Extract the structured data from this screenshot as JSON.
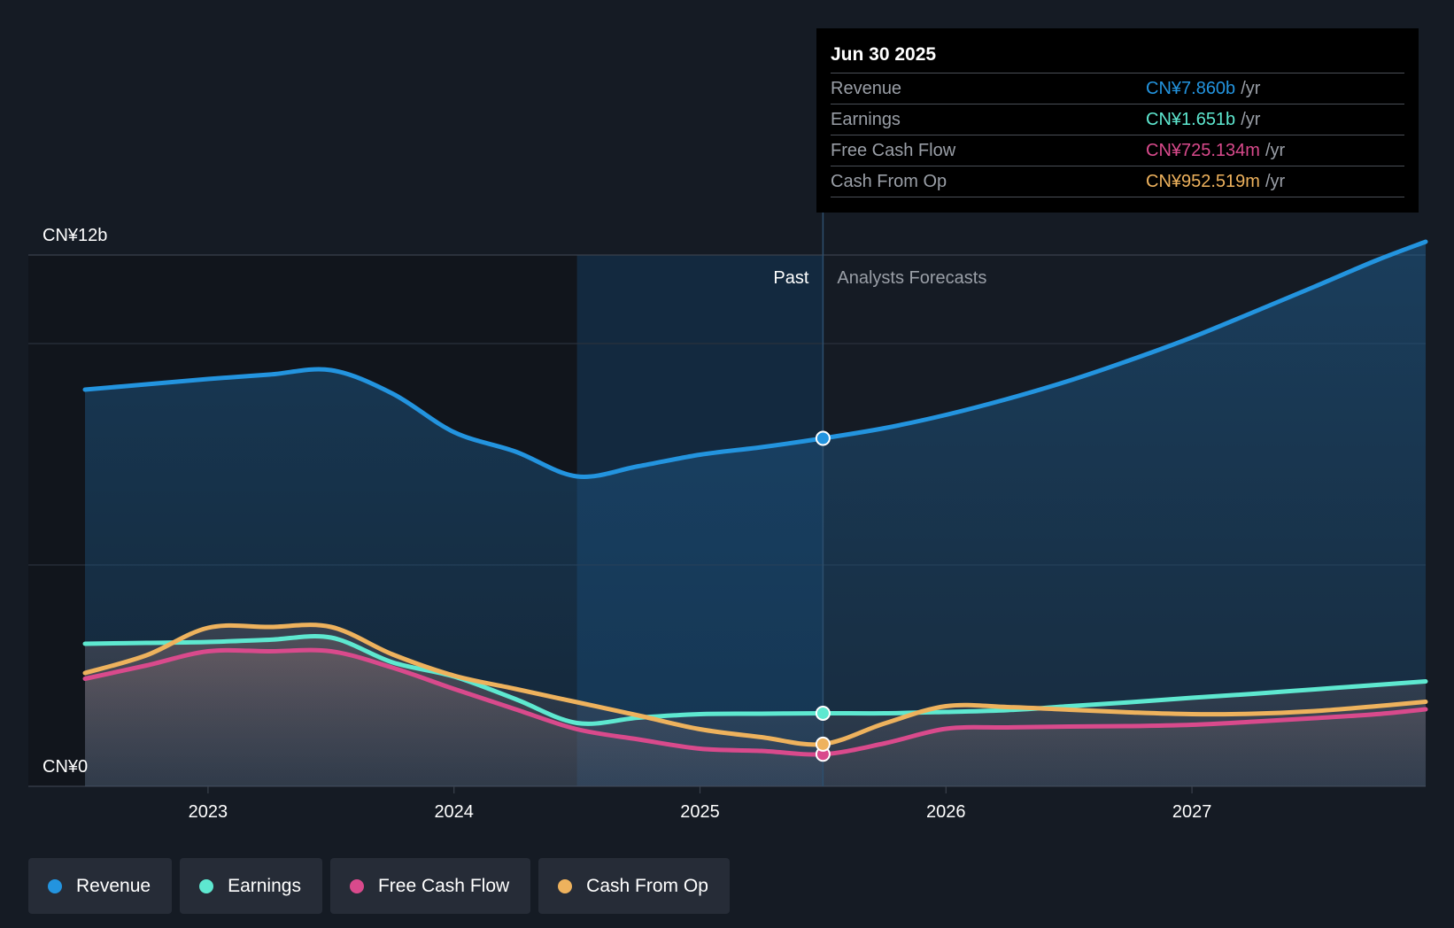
{
  "chart_data": {
    "type": "area",
    "y_unit_label": "CN¥",
    "ylim": [
      0,
      12
    ],
    "y_tick_labels": {
      "top": "CN¥12b",
      "bottom": "CN¥0"
    },
    "x_range": [
      2022.5,
      2027.95
    ],
    "x_ticks": [
      2023,
      2024,
      2025,
      2026,
      2027
    ],
    "x_tick_labels": [
      "2023",
      "2024",
      "2025",
      "2026",
      "2027"
    ],
    "past_label": "Past",
    "forecast_label": "Analysts Forecasts",
    "divider_x": 2025.5,
    "highlight_start_x": 2024.5,
    "series": [
      {
        "name": "Revenue",
        "color": "#2394df",
        "points": [
          [
            2022.5,
            8.96
          ],
          [
            2022.75,
            9.08
          ],
          [
            2023.0,
            9.2
          ],
          [
            2023.25,
            9.3
          ],
          [
            2023.5,
            9.4
          ],
          [
            2023.75,
            8.87
          ],
          [
            2024.0,
            8.0
          ],
          [
            2024.25,
            7.56
          ],
          [
            2024.5,
            7.0
          ],
          [
            2024.75,
            7.23
          ],
          [
            2025.0,
            7.49
          ],
          [
            2025.25,
            7.66
          ],
          [
            2025.5,
            7.86
          ],
          [
            2025.75,
            8.09
          ],
          [
            2026.0,
            8.39
          ],
          [
            2026.25,
            8.75
          ],
          [
            2026.5,
            9.16
          ],
          [
            2026.75,
            9.63
          ],
          [
            2027.0,
            10.14
          ],
          [
            2027.25,
            10.71
          ],
          [
            2027.5,
            11.29
          ],
          [
            2027.75,
            11.88
          ],
          [
            2027.95,
            12.3
          ]
        ]
      },
      {
        "name": "Earnings",
        "color": "#5ee8d0",
        "points": [
          [
            2022.5,
            3.22
          ],
          [
            2022.75,
            3.24
          ],
          [
            2023.0,
            3.26
          ],
          [
            2023.25,
            3.31
          ],
          [
            2023.5,
            3.36
          ],
          [
            2023.75,
            2.8
          ],
          [
            2024.0,
            2.48
          ],
          [
            2024.25,
            1.97
          ],
          [
            2024.5,
            1.43
          ],
          [
            2024.75,
            1.55
          ],
          [
            2025.0,
            1.63
          ],
          [
            2025.25,
            1.64
          ],
          [
            2025.5,
            1.651
          ],
          [
            2025.75,
            1.65
          ],
          [
            2026.0,
            1.68
          ],
          [
            2026.25,
            1.72
          ],
          [
            2026.5,
            1.81
          ],
          [
            2026.75,
            1.9
          ],
          [
            2027.0,
            2.0
          ],
          [
            2027.25,
            2.09
          ],
          [
            2027.5,
            2.19
          ],
          [
            2027.75,
            2.29
          ],
          [
            2027.95,
            2.37
          ]
        ]
      },
      {
        "name": "Free Cash Flow",
        "color": "#d94a8c",
        "points": [
          [
            2022.5,
            2.43
          ],
          [
            2022.75,
            2.73
          ],
          [
            2023.0,
            3.05
          ],
          [
            2023.25,
            3.05
          ],
          [
            2023.5,
            3.05
          ],
          [
            2023.75,
            2.68
          ],
          [
            2024.0,
            2.2
          ],
          [
            2024.25,
            1.74
          ],
          [
            2024.5,
            1.29
          ],
          [
            2024.75,
            1.06
          ],
          [
            2025.0,
            0.85
          ],
          [
            2025.25,
            0.8
          ],
          [
            2025.5,
            0.725
          ],
          [
            2025.75,
            0.97
          ],
          [
            2026.0,
            1.3
          ],
          [
            2026.25,
            1.33
          ],
          [
            2026.5,
            1.35
          ],
          [
            2026.75,
            1.36
          ],
          [
            2027.0,
            1.39
          ],
          [
            2027.25,
            1.46
          ],
          [
            2027.5,
            1.54
          ],
          [
            2027.75,
            1.63
          ],
          [
            2027.95,
            1.74
          ]
        ]
      },
      {
        "name": "Cash From Op",
        "color": "#eeb25d",
        "points": [
          [
            2022.5,
            2.56
          ],
          [
            2022.75,
            2.96
          ],
          [
            2023.0,
            3.58
          ],
          [
            2023.25,
            3.6
          ],
          [
            2023.5,
            3.6
          ],
          [
            2023.75,
            2.98
          ],
          [
            2024.0,
            2.5
          ],
          [
            2024.25,
            2.2
          ],
          [
            2024.5,
            1.9
          ],
          [
            2024.75,
            1.6
          ],
          [
            2025.0,
            1.29
          ],
          [
            2025.25,
            1.11
          ],
          [
            2025.5,
            0.953
          ],
          [
            2025.75,
            1.42
          ],
          [
            2026.0,
            1.81
          ],
          [
            2026.25,
            1.79
          ],
          [
            2026.5,
            1.73
          ],
          [
            2026.75,
            1.67
          ],
          [
            2027.0,
            1.63
          ],
          [
            2027.25,
            1.64
          ],
          [
            2027.5,
            1.7
          ],
          [
            2027.75,
            1.81
          ],
          [
            2027.95,
            1.91
          ]
        ]
      }
    ],
    "markers_at_x": 2025.5
  },
  "tooltip": {
    "date": "Jun 30 2025",
    "rows": [
      {
        "name": "Revenue",
        "value": "CN¥7.860b",
        "unit": "/yr",
        "color": "#2394df"
      },
      {
        "name": "Earnings",
        "value": "CN¥1.651b",
        "unit": "/yr",
        "color": "#5ee8d0"
      },
      {
        "name": "Free Cash Flow",
        "value": "CN¥725.134m",
        "unit": "/yr",
        "color": "#d94a8c"
      },
      {
        "name": "Cash From Op",
        "value": "CN¥952.519m",
        "unit": "/yr",
        "color": "#eeb25d"
      }
    ]
  },
  "legend": [
    {
      "label": "Revenue",
      "color": "#2394df"
    },
    {
      "label": "Earnings",
      "color": "#5ee8d0"
    },
    {
      "label": "Free Cash Flow",
      "color": "#d94a8c"
    },
    {
      "label": "Cash From Op",
      "color": "#eeb25d"
    }
  ]
}
